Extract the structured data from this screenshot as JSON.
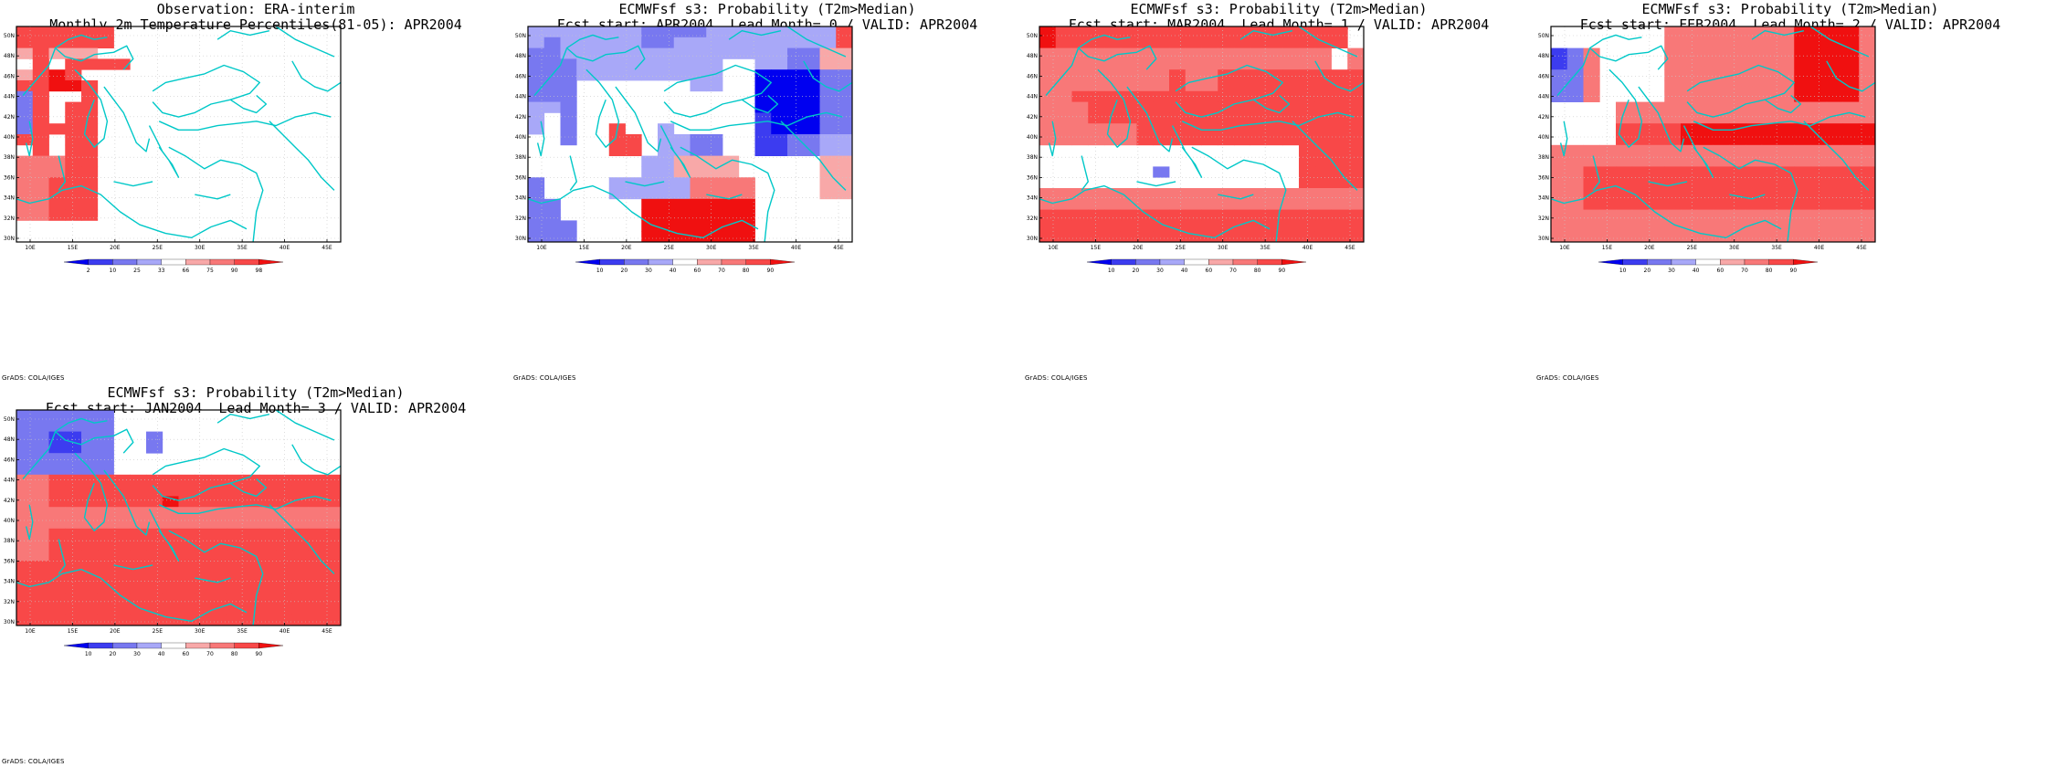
{
  "colors": {
    "blue_dark": "#0000f0",
    "blue_mid": "#3c3cf0",
    "blue_light": "#7878f0",
    "blue_pale": "#a8a8f8",
    "red_pale": "#f8a8a8",
    "red_light": "#f87878",
    "red_mid": "#f84848",
    "red_dark": "#f01010",
    "coast": "#00c8c8",
    "frame": "#000000",
    "grid": "#c8c8c8"
  },
  "axes": {
    "lat_labels": [
      "50N",
      "48N",
      "46N",
      "44N",
      "42N",
      "40N",
      "38N",
      "36N",
      "34N",
      "32N",
      "30N"
    ],
    "lon_labels": [
      "10E",
      "15E",
      "20E",
      "25E",
      "30E",
      "35E",
      "40E",
      "45E"
    ]
  },
  "credit": "GrADS: COLA/IGES",
  "panels": [
    {
      "title1": "Observation: ERA-interim",
      "title2": "Monthly 2m Temperature Percentiles(81-05): APR2004",
      "legend_labels": [
        "2",
        "10",
        "25",
        "33",
        "66",
        "75",
        "90",
        "98"
      ],
      "grid": [
        "33333300000000000000",
        "33333300000000000000",
        "13111000000000000000",
        "03033330000000000000",
        "13430000000000000000",
        "33443000000000000000",
        "63003000000000000000",
        "63033000000000000000",
        "63033000000000000000",
        "63333000000000000000",
        "33033000000000000000",
        "03033000000000000000",
        "22233000000000000000",
        "22233000000000000000",
        "22333000000000000000",
        "22333000000000000000",
        "22333000000000000000",
        "22333000000000000000",
        "00000000000000000000",
        "00000000000000000000"
      ]
    },
    {
      "title1": "ECMWFsf s3: Probability (T2m>Median)",
      "title2": "Fcst start: APR2004  Lead Month= 0 / VALID: APR2004",
      "legend_labels": [
        "10",
        "20",
        "30",
        "40",
        "60",
        "70",
        "80",
        "90"
      ],
      "grid": [
        "55555556666555555553",
        "56555556655555555553",
        "66555555555555556611",
        "66655555555500556611",
        "66655555555500888866",
        "66600000005500888866",
        "66600000000000888866",
        "55600000000000888866",
        "50600000000000788866",
        "50600300500000788866",
        "00600330556600776655",
        "00000330556600776655",
        "00000005511110000011",
        "00000005511110000011",
        "60000555552222000011",
        "60000555552222000011",
        "66000004444444000000",
        "66000004444444000000",
        "66600004444444000000",
        "66600004444444000000"
      ]
    },
    {
      "title1": "ECMWFsf s3: Probability (T2m>Median)",
      "title2": "Fcst start: MAR2004  Lead Month= 1 / VALID: APR2004",
      "legend_labels": [
        "10",
        "20",
        "30",
        "40",
        "60",
        "70",
        "80",
        "90"
      ],
      "grid": [
        "43333333333333333330",
        "43333333333333333330",
        "22222222222222222202",
        "22222222222222222202",
        "22222222322333333333",
        "22222222322333333333",
        "22333333333333333333",
        "22233333333333333333",
        "22233333333333333333",
        "22222233333333333333",
        "22222233333333333333",
        "00000000000000003333",
        "00000000000000003333",
        "00000006000000003333",
        "00000000000000003333",
        "22222222222222222222",
        "22222222222222222222",
        "33333333333333333333",
        "33333333333333333333",
        "33333333333333333333"
      ]
    },
    {
      "title1": "ECMWFsf s3: Probability (T2m>Median)",
      "title2": "Fcst start: FEB2004  Lead Month= 2 / VALID: APR2004",
      "legend_labels": [
        "10",
        "20",
        "30",
        "40",
        "60",
        "70",
        "80",
        "90"
      ],
      "grid": [
        "00000002222222244442",
        "00000002222222244442",
        "76200002222222244442",
        "76200002222222244442",
        "66200002222222244442",
        "66200002222222244442",
        "66200002222222244442",
        "00002222222222222222",
        "00002222222222222222",
        "00003333444444444444",
        "00003333444444444444",
        "22222222222222222222",
        "22222222222222222222",
        "22333333333333333333",
        "22333333333333333333",
        "22333333333333333333",
        "22333333333333333333",
        "22222222222222222222",
        "22222222222222222222",
        "22222222222222222222"
      ]
    },
    {
      "title1": "ECMWFsf s3: Probability (T2m>Median)",
      "title2": "Fcst start: JAN2004  Lead Month= 3 / VALID: APR2004",
      "legend_labels": [
        "10",
        "20",
        "30",
        "40",
        "60",
        "70",
        "80",
        "90"
      ],
      "grid": [
        "66666600000000000000",
        "66666600000000000000",
        "66776600600000000000",
        "66776600600000000000",
        "66666600000000000000",
        "66666600000000000000",
        "22333333333333333333",
        "22333333333333333333",
        "22333333343333333333",
        "22222222222222222222",
        "22222222222222222222",
        "22333333333333333333",
        "22333333333333333333",
        "22333333333333333333",
        "33333333333333333333",
        "33333333333333333333",
        "33333333333333333333",
        "33333333333333333333",
        "33333333333333333333",
        "33333333333333333333"
      ]
    }
  ]
}
